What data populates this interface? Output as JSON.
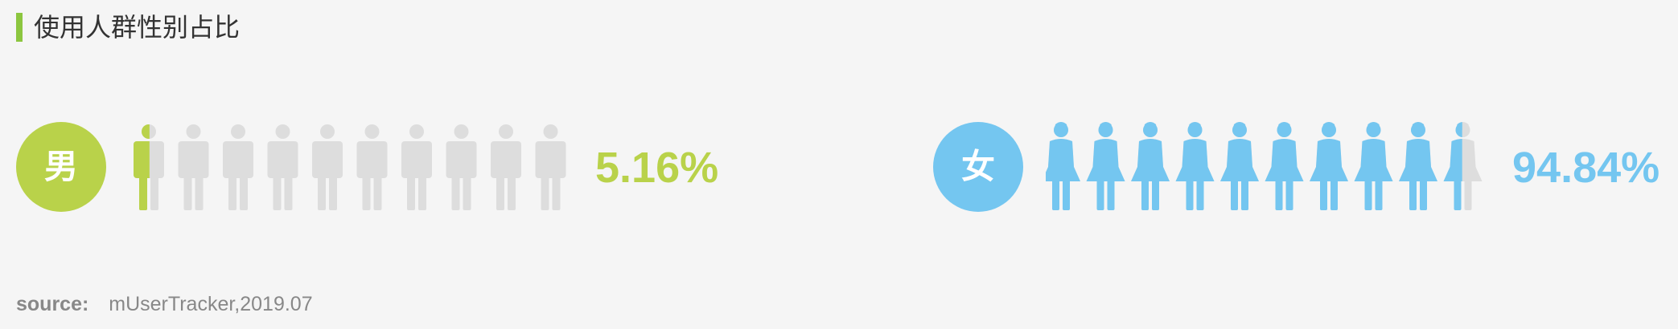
{
  "title": "使用人群性别占比",
  "source_label": "source:",
  "source_value": "mUserTracker,2019.07",
  "colors": {
    "accent": "#8cc63f",
    "male": "#b9d24a",
    "female": "#74c6f0",
    "empty": "#dddddd",
    "title": "#333333",
    "source": "#888888"
  },
  "chart_data": {
    "type": "pictogram",
    "icons_per_group": 10,
    "groups": [
      {
        "key": "male",
        "label": "男",
        "value": 5.16,
        "display": "5.16%",
        "icon": "male-figure-icon"
      },
      {
        "key": "female",
        "label": "女",
        "value": 94.84,
        "display": "94.84%",
        "icon": "female-figure-icon"
      }
    ]
  }
}
